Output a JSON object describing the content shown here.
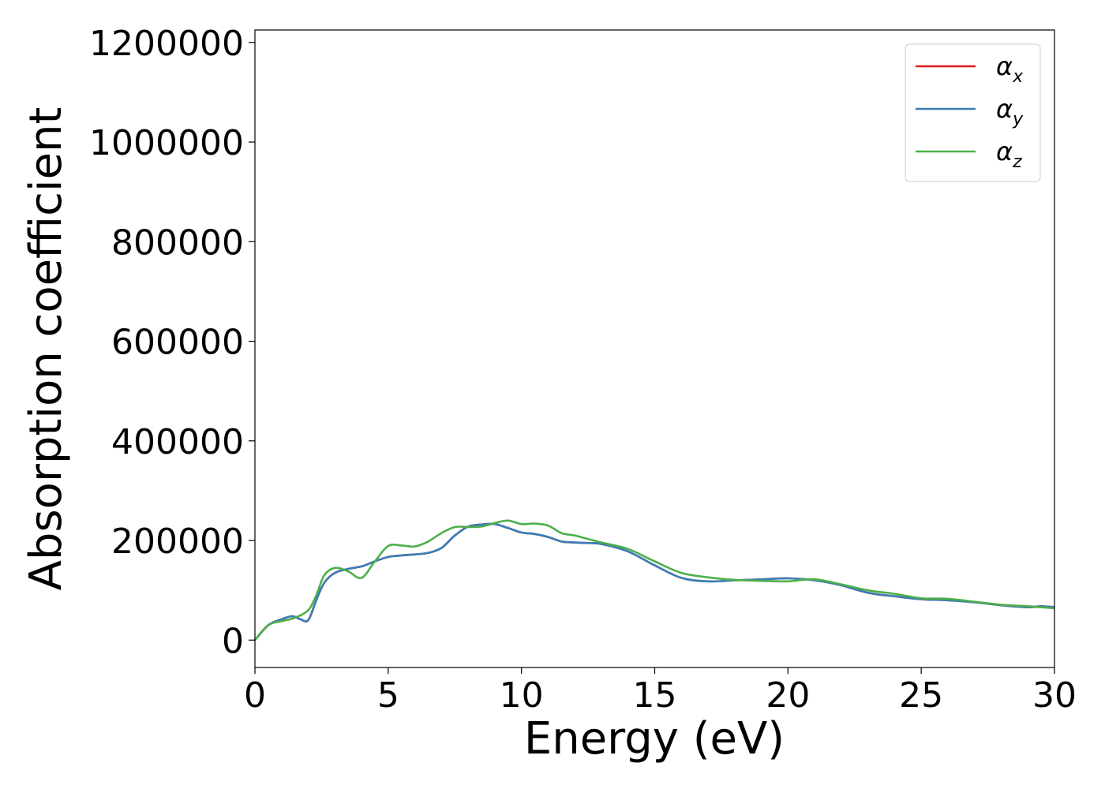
{
  "chart_data": {
    "type": "line",
    "xlabel": "Energy (eV)",
    "ylabel": "Absorption coefficient",
    "xlim": [
      0,
      30
    ],
    "ylim": [
      -55000,
      1225000
    ],
    "xticks": [
      "0",
      "5",
      "10",
      "15",
      "20",
      "25",
      "30"
    ],
    "yticks": [
      "0",
      "200000",
      "400000",
      "600000",
      "800000",
      "1000000",
      "1200000"
    ],
    "grid": false,
    "legend_position": "top-right",
    "series": [
      {
        "name": "α",
        "subscript": "x",
        "color": "#e41a1c",
        "x": [
          0,
          0.5,
          1.0,
          1.4,
          1.7,
          2.0,
          2.3,
          2.6,
          3.0,
          3.5,
          4.0,
          4.5,
          5.0,
          5.5,
          6.0,
          6.5,
          7.0,
          7.5,
          8.0,
          8.5,
          9.0,
          9.5,
          10.0,
          10.5,
          11.0,
          11.5,
          12.0,
          12.5,
          13.0,
          14.0,
          15.0,
          16.0,
          17.0,
          18.0,
          19.0,
          20.0,
          21.0,
          22.0,
          23.0,
          24.0,
          25.0,
          26.0,
          27.0,
          28.0,
          29.0,
          29.5,
          30.0
        ],
        "values": [
          0,
          30000,
          42000,
          48000,
          42000,
          40000,
          80000,
          115000,
          135000,
          143000,
          148000,
          158000,
          167000,
          170000,
          172000,
          175000,
          185000,
          210000,
          228000,
          232000,
          233000,
          225000,
          216000,
          213000,
          207000,
          198000,
          196000,
          195000,
          193000,
          178000,
          150000,
          125000,
          118000,
          120000,
          122000,
          124000,
          120000,
          110000,
          95000,
          88000,
          82000,
          80000,
          76000,
          70000,
          66000,
          68000,
          66000
        ]
      },
      {
        "name": "α",
        "subscript": "y",
        "color": "#377eb8",
        "x": [
          0,
          0.5,
          1.0,
          1.4,
          1.7,
          2.0,
          2.3,
          2.6,
          3.0,
          3.5,
          4.0,
          4.5,
          5.0,
          5.5,
          6.0,
          6.5,
          7.0,
          7.5,
          8.0,
          8.5,
          9.0,
          9.5,
          10.0,
          10.5,
          11.0,
          11.5,
          12.0,
          12.5,
          13.0,
          14.0,
          15.0,
          16.0,
          17.0,
          18.0,
          19.0,
          20.0,
          21.0,
          22.0,
          23.0,
          24.0,
          25.0,
          26.0,
          27.0,
          28.0,
          29.0,
          29.5,
          30.0
        ],
        "values": [
          0,
          30000,
          42000,
          48000,
          42000,
          40000,
          80000,
          115000,
          135000,
          143000,
          148000,
          158000,
          167000,
          170000,
          172000,
          175000,
          185000,
          210000,
          228000,
          232000,
          233000,
          225000,
          216000,
          213000,
          207000,
          198000,
          196000,
          195000,
          193000,
          178000,
          150000,
          125000,
          118000,
          120000,
          122000,
          124000,
          120000,
          110000,
          95000,
          88000,
          82000,
          80000,
          76000,
          70000,
          66000,
          68000,
          66000
        ]
      },
      {
        "name": "α",
        "subscript": "z",
        "color": "#4daf4a",
        "x": [
          0,
          0.5,
          1.0,
          1.5,
          2.0,
          2.3,
          2.6,
          3.0,
          3.5,
          4.0,
          4.5,
          5.0,
          5.5,
          6.0,
          6.5,
          7.0,
          7.5,
          8.0,
          8.5,
          9.0,
          9.5,
          10.0,
          10.5,
          11.0,
          11.5,
          12.0,
          12.5,
          13.0,
          14.0,
          15.0,
          16.0,
          17.0,
          18.0,
          19.0,
          20.0,
          21.0,
          22.0,
          23.0,
          24.0,
          25.0,
          26.0,
          27.0,
          28.0,
          29.0,
          30.0
        ],
        "values": [
          0,
          30000,
          38000,
          45000,
          60000,
          90000,
          130000,
          145000,
          138000,
          125000,
          158000,
          189000,
          190000,
          188000,
          198000,
          215000,
          227000,
          227000,
          228000,
          235000,
          240000,
          233000,
          234000,
          230000,
          215000,
          210000,
          203000,
          196000,
          183000,
          158000,
          135000,
          126000,
          121000,
          119000,
          118000,
          122000,
          112000,
          100000,
          93000,
          84000,
          83000,
          77000,
          71000,
          68000,
          64000
        ]
      }
    ]
  }
}
